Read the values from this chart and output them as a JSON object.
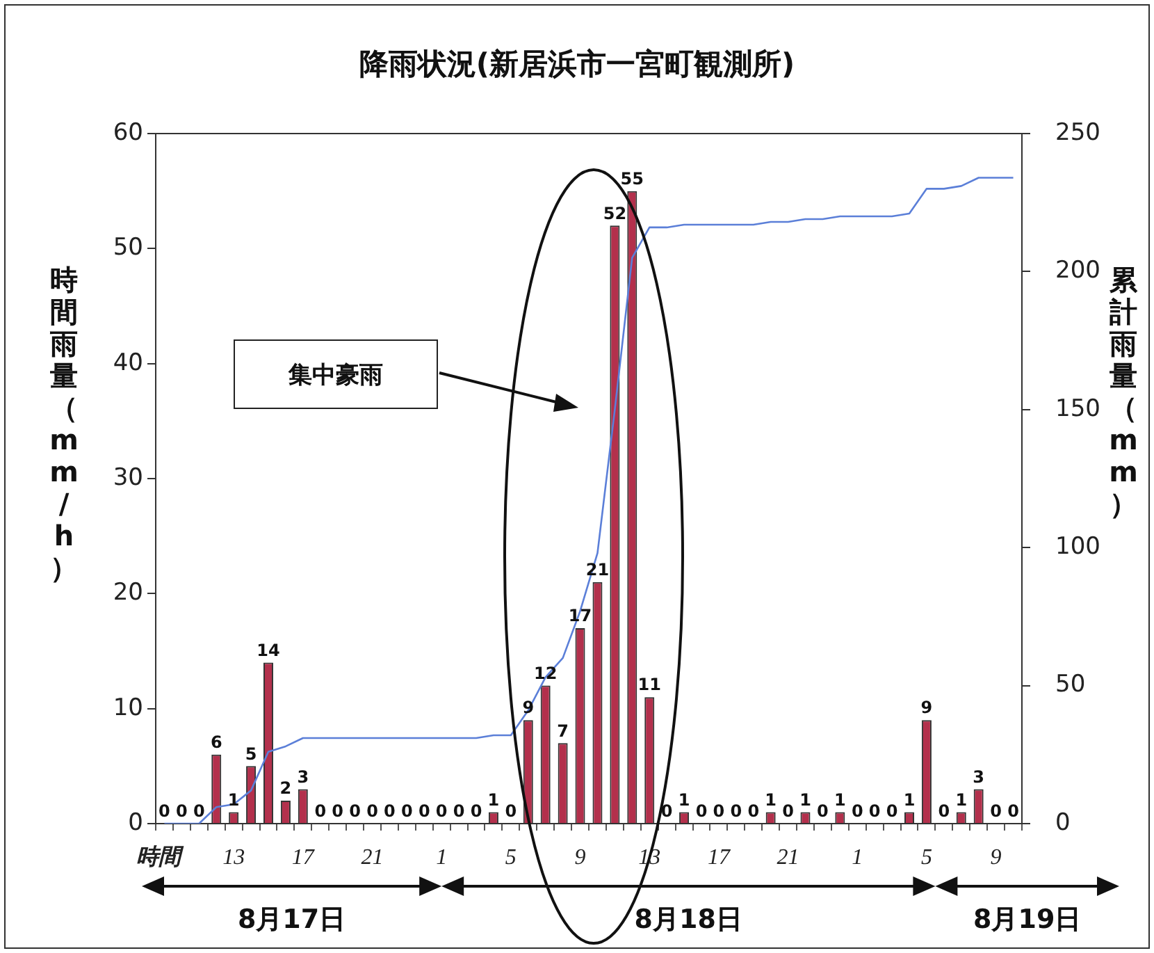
{
  "chart_data": {
    "type": "bar",
    "title": "降雨状況(新居浜市一宮町観測所)",
    "xlabel": "時間",
    "ylabel": "時間雨量（mm/h）",
    "y2label": "累計雨量（mm）",
    "categories": [
      null,
      null,
      null,
      null,
      "13",
      null,
      null,
      null,
      "17",
      null,
      null,
      null,
      "21",
      null,
      null,
      null,
      "1",
      null,
      null,
      null,
      "5",
      null,
      null,
      null,
      "9",
      null,
      null,
      null,
      "13",
      null,
      null,
      null,
      "17",
      null,
      null,
      null,
      "21",
      null,
      null,
      null,
      "1",
      null,
      null,
      null,
      "5",
      null,
      null,
      null,
      "9",
      null
    ],
    "series": [
      {
        "color": "#b3304c",
        "values": [
          0,
          0,
          0,
          6,
          1,
          5,
          14,
          2,
          3,
          0,
          0,
          0,
          0,
          0,
          0,
          0,
          0,
          0,
          0,
          1,
          0,
          9,
          12,
          7,
          17,
          21,
          52,
          55,
          11,
          0,
          1,
          0,
          0,
          0,
          0,
          1,
          0,
          1,
          0,
          1,
          0,
          0,
          0,
          1,
          9,
          0,
          1,
          3,
          0,
          0
        ],
        "value_labels": [
          "0",
          "0",
          "0",
          "6",
          "1",
          "5",
          "14",
          "2",
          "3",
          "0",
          "0",
          "0",
          "0",
          "0",
          "0",
          "0",
          "0",
          "0",
          "0",
          "1",
          "0",
          "9",
          "12",
          "7",
          "17",
          "21",
          "52",
          "55",
          "11",
          "0",
          "1",
          "0",
          "0",
          "0",
          "0",
          "1",
          "0",
          "1",
          "0",
          "1",
          "0",
          "0",
          "0",
          "1",
          "9",
          "0",
          "1",
          "3",
          "0",
          "0"
        ]
      },
      {
        "type": "line",
        "axis": "y2",
        "color": "#5b7fd8",
        "marker": "none",
        "values": [
          0,
          0,
          0,
          6,
          7,
          12,
          26,
          28,
          31,
          31,
          31,
          31,
          31,
          31,
          31,
          31,
          31,
          31,
          31,
          32,
          32,
          41,
          53,
          60,
          77,
          98,
          150,
          205,
          216,
          216,
          217,
          217,
          217,
          217,
          217,
          218,
          218,
          219,
          219,
          220,
          220,
          220,
          220,
          221,
          230,
          230,
          231,
          234,
          234,
          234
        ]
      }
    ],
    "ylim": [
      0,
      60
    ],
    "yticks": [
      0,
      10,
      20,
      30,
      40,
      50,
      60
    ],
    "y2lim": [
      0,
      250
    ],
    "y2ticks": [
      0,
      50,
      100,
      150,
      200,
      250
    ],
    "annotations": [
      "集中豪雨",
      "8月17日",
      "8月18日",
      "8月19日"
    ]
  }
}
